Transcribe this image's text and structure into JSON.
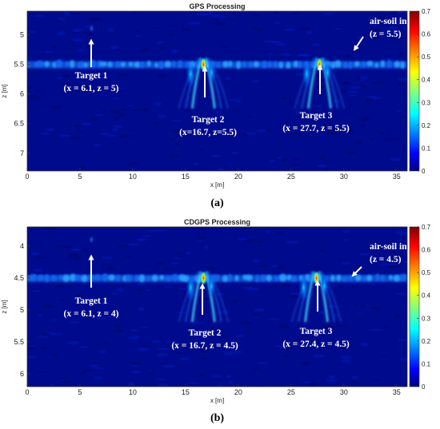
{
  "colors": {
    "background_field": "#000a8c",
    "interface_band": "#0a56d8",
    "annotation": "#ffffff",
    "colormap": [
      "#00007f",
      "#0000ff",
      "#0080ff",
      "#00ffff",
      "#80ff80",
      "#ffff00",
      "#ff8000",
      "#ff0000",
      "#7f0000"
    ]
  },
  "chart_data": [
    {
      "type": "heatmap",
      "title": "GPS Processing",
      "xlabel": "x [m]",
      "ylabel": "z [m]",
      "xlim": [
        0,
        36
      ],
      "ylim": [
        7.3,
        4.6
      ],
      "x_ticks": [
        0,
        5,
        10,
        15,
        20,
        25,
        30,
        35
      ],
      "y_ticks": [
        5,
        5.5,
        6,
        6.5,
        7
      ],
      "colorbar": {
        "range": [
          0,
          0.7
        ],
        "ticks": [
          0,
          0.1,
          0.2,
          0.3,
          0.4,
          0.5,
          0.6,
          0.7
        ]
      },
      "interface_depth": 5.5,
      "hotspots": [
        {
          "x": 16.7,
          "z": 5.5,
          "intensity": 0.68
        },
        {
          "x": 27.7,
          "z": 5.5,
          "intensity": 0.62
        }
      ],
      "annotations": [
        {
          "lines": [
            "Target 1",
            "(x = 6.1, z = 5)"
          ],
          "point": [
            6.1,
            5.0
          ]
        },
        {
          "lines": [
            "Target 2",
            "(x=16.7, z=5.5)"
          ],
          "point": [
            16.7,
            5.5
          ]
        },
        {
          "lines": [
            "Target 3",
            "(x = 27.7, z = 5.5)"
          ],
          "point": [
            27.7,
            5.5
          ]
        },
        {
          "lines": [
            "air-soil interface",
            "(z = 5.5)"
          ],
          "point": [
            30.8,
            5.5
          ]
        }
      ],
      "panel_label": "(a)"
    },
    {
      "type": "heatmap",
      "title": "CDGPS Processing",
      "xlabel": "x [m]",
      "ylabel": "z [m]",
      "xlim": [
        0,
        36
      ],
      "ylim": [
        6.2,
        3.7
      ],
      "x_ticks": [
        0,
        5,
        10,
        15,
        20,
        25,
        30,
        35
      ],
      "y_ticks": [
        4,
        4.5,
        5,
        5.5,
        6
      ],
      "colorbar": {
        "range": [
          0,
          0.7
        ],
        "ticks": [
          0,
          0.1,
          0.2,
          0.3,
          0.4,
          0.5,
          0.6,
          0.7
        ]
      },
      "interface_depth": 4.5,
      "hotspots": [
        {
          "x": 16.7,
          "z": 4.5,
          "intensity": 0.68
        },
        {
          "x": 27.4,
          "z": 4.5,
          "intensity": 0.62
        }
      ],
      "annotations": [
        {
          "lines": [
            "Target 1",
            "(x = 6.1, z = 4)"
          ],
          "point": [
            6.1,
            4.0
          ]
        },
        {
          "lines": [
            "Target 2",
            "(x = 16.7, z = 4.5)"
          ],
          "point": [
            16.7,
            4.5
          ]
        },
        {
          "lines": [
            "Target 3",
            "(x = 27.4, z = 4.5)"
          ],
          "point": [
            27.4,
            4.5
          ]
        },
        {
          "lines": [
            "air-soil interface",
            "(z = 4.5)"
          ],
          "point": [
            30.8,
            4.5
          ]
        }
      ],
      "panel_label": "(b)"
    }
  ]
}
